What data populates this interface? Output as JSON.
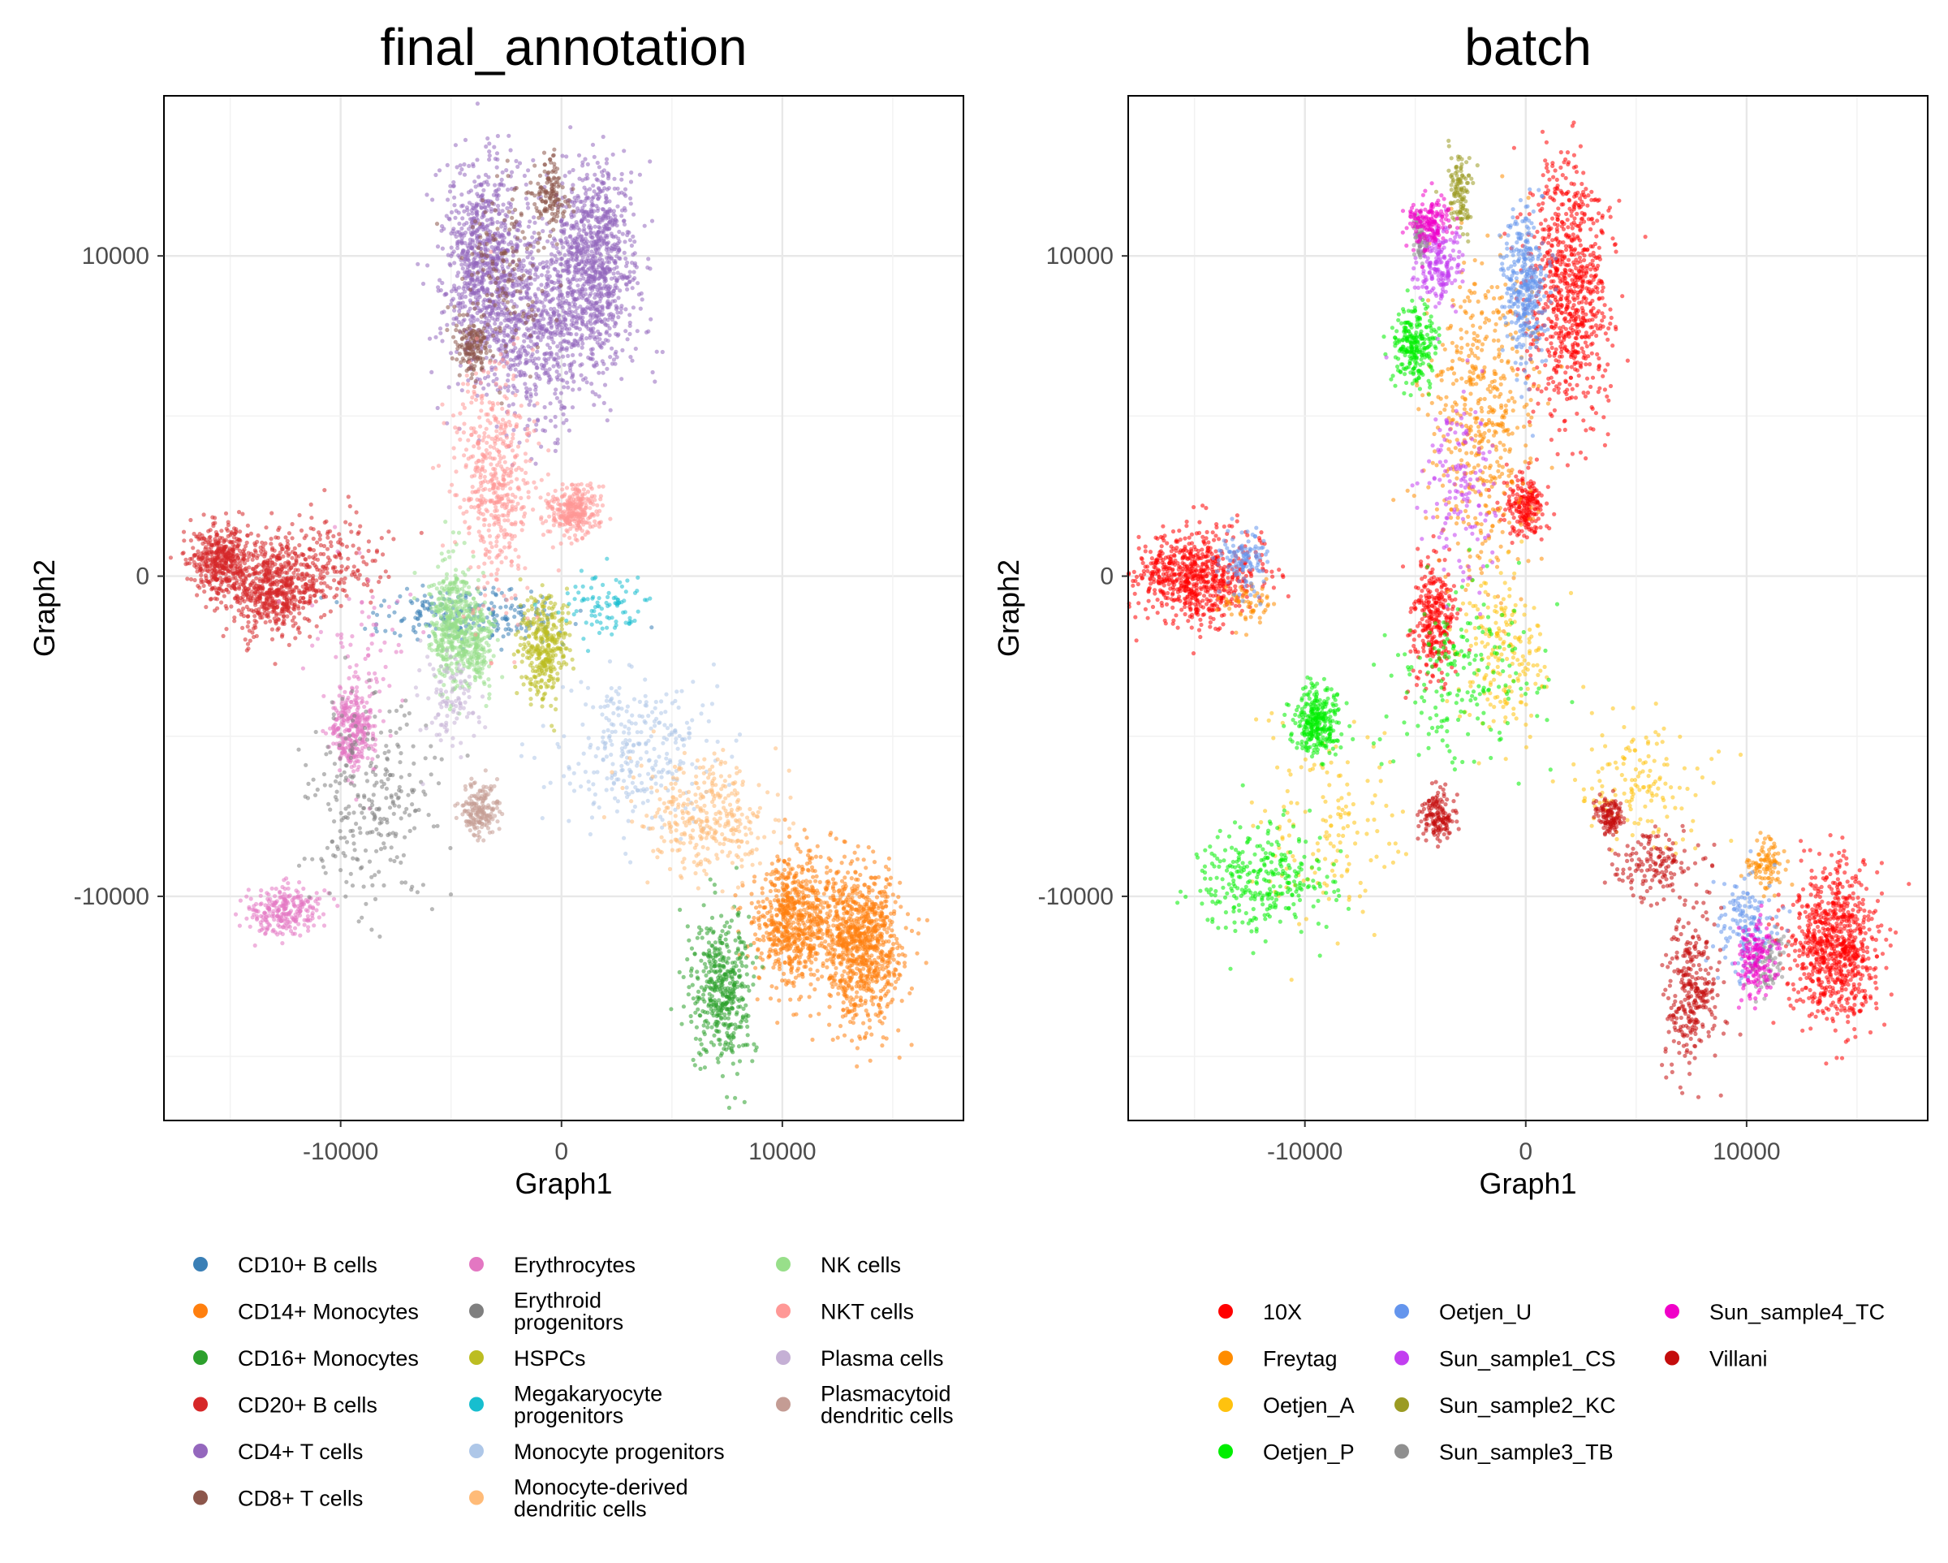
{
  "chart_data": [
    {
      "type": "scatter",
      "title": "final_annotation",
      "xlabel": "Graph1",
      "ylabel": "Graph2",
      "xlim": [
        -18000,
        18200
      ],
      "ylim": [
        -17000,
        15000
      ],
      "xticks": [
        -10000,
        0,
        10000
      ],
      "yticks": [
        -10000,
        0,
        10000
      ],
      "xtick_labels": [
        "-10000",
        "0",
        "10000"
      ],
      "ytick_labels": [
        "-10000",
        "0",
        "10000"
      ],
      "grid": true,
      "legend_position": "bottom",
      "legend_columns": 3,
      "series": [
        {
          "name": "CD10+ B cells",
          "color": "#3a7fb6",
          "clusters": [
            {
              "cx": -4000,
              "cy": -1200,
              "sx": 2200,
              "sy": 400,
              "n": 220
            }
          ]
        },
        {
          "name": "CD14+ Monocytes",
          "color": "#ff7f0e",
          "clusters": [
            {
              "cx": 10500,
              "cy": -10800,
              "sx": 900,
              "sy": 1000,
              "n": 700
            },
            {
              "cx": 13600,
              "cy": -11500,
              "sx": 900,
              "sy": 1200,
              "n": 900
            }
          ]
        },
        {
          "name": "CD16+ Monocytes",
          "color": "#2ca02c",
          "clusters": [
            {
              "cx": 7300,
              "cy": -13000,
              "sx": 700,
              "sy": 1200,
              "n": 450
            }
          ]
        },
        {
          "name": "CD20+ B cells",
          "color": "#d62728",
          "clusters": [
            {
              "cx": -15500,
              "cy": 500,
              "sx": 700,
              "sy": 500,
              "n": 400
            },
            {
              "cx": -13000,
              "cy": -300,
              "sx": 1300,
              "sy": 700,
              "n": 700
            },
            {
              "cx": -10000,
              "cy": 700,
              "sx": 1200,
              "sy": 800,
              "n": 120
            }
          ]
        },
        {
          "name": "CD4+ T cells",
          "color": "#9467bd",
          "clusters": [
            {
              "cx": -3500,
              "cy": 10000,
              "sx": 900,
              "sy": 1500,
              "n": 700
            },
            {
              "cx": 1500,
              "cy": 10000,
              "sx": 900,
              "sy": 1500,
              "n": 800
            },
            {
              "cx": -1000,
              "cy": 8000,
              "sx": 1800,
              "sy": 1500,
              "n": 900
            }
          ]
        },
        {
          "name": "CD8+ T cells",
          "color": "#8c564b",
          "clusters": [
            {
              "cx": -4000,
              "cy": 7200,
              "sx": 400,
              "sy": 500,
              "n": 150
            },
            {
              "cx": -500,
              "cy": 12000,
              "sx": 350,
              "sy": 500,
              "n": 130
            },
            {
              "cx": -2500,
              "cy": 9500,
              "sx": 1000,
              "sy": 1500,
              "n": 150
            }
          ]
        },
        {
          "name": "Erythrocytes",
          "color": "#e377c2",
          "clusters": [
            {
              "cx": -9500,
              "cy": -4800,
              "sx": 500,
              "sy": 600,
              "n": 300
            },
            {
              "cx": -12500,
              "cy": -10500,
              "sx": 800,
              "sy": 400,
              "n": 250
            },
            {
              "cx": -9000,
              "cy": -2500,
              "sx": 1000,
              "sy": 1500,
              "n": 80
            }
          ]
        },
        {
          "name": "Erythroid progenitors",
          "color": "#7f7f7f",
          "clusters": [
            {
              "cx": -8500,
              "cy": -7000,
              "sx": 1400,
              "sy": 1500,
              "n": 280
            }
          ]
        },
        {
          "name": "HSPCs",
          "color": "#bcbd22",
          "clusters": [
            {
              "cx": -800,
              "cy": -2300,
              "sx": 500,
              "sy": 800,
              "n": 350
            }
          ]
        },
        {
          "name": "Megakaryocyte progenitors",
          "color": "#17becf",
          "clusters": [
            {
              "cx": 1800,
              "cy": -900,
              "sx": 1000,
              "sy": 500,
              "n": 90
            }
          ]
        },
        {
          "name": "Monocyte progenitors",
          "color": "#aec7e8",
          "clusters": [
            {
              "cx": 3500,
              "cy": -5500,
              "sx": 1800,
              "sy": 1200,
              "n": 300
            }
          ]
        },
        {
          "name": "Monocyte-derived dendritic cells",
          "color": "#ffbb78",
          "clusters": [
            {
              "cx": 6500,
              "cy": -7500,
              "sx": 1500,
              "sy": 900,
              "n": 350
            }
          ]
        },
        {
          "name": "NK cells",
          "color": "#98df8a",
          "clusters": [
            {
              "cx": -5000,
              "cy": -1500,
              "sx": 500,
              "sy": 900,
              "n": 420
            },
            {
              "cx": -3800,
              "cy": -2000,
              "sx": 400,
              "sy": 700,
              "n": 200
            }
          ]
        },
        {
          "name": "NKT cells",
          "color": "#ff9896",
          "clusters": [
            {
              "cx": -3000,
              "cy": 3000,
              "sx": 900,
              "sy": 1800,
              "n": 500
            },
            {
              "cx": 500,
              "cy": 2000,
              "sx": 600,
              "sy": 400,
              "n": 300
            }
          ]
        },
        {
          "name": "Plasma cells",
          "color": "#c5b0d5",
          "clusters": [
            {
              "cx": -5000,
              "cy": -4000,
              "sx": 700,
              "sy": 800,
              "n": 100
            }
          ]
        },
        {
          "name": "Plasmacytoid dendritic cells",
          "color": "#c49c94",
          "clusters": [
            {
              "cx": -3700,
              "cy": -7300,
              "sx": 400,
              "sy": 400,
              "n": 180
            }
          ]
        }
      ]
    },
    {
      "type": "scatter",
      "title": "batch",
      "xlabel": "Graph1",
      "ylabel": "Graph2",
      "xlim": [
        -18000,
        18200
      ],
      "ylim": [
        -17000,
        15000
      ],
      "xticks": [
        -10000,
        0,
        10000
      ],
      "yticks": [
        -10000,
        0,
        10000
      ],
      "xtick_labels": [
        "-10000",
        "0",
        "10000"
      ],
      "ytick_labels": [
        "-10000",
        "0",
        "10000"
      ],
      "grid": true,
      "legend_position": "bottom",
      "legend_columns": 3,
      "series": [
        {
          "name": "10X",
          "color": "#ff0000",
          "clusters": [
            {
              "cx": -15000,
              "cy": 0,
              "sx": 1400,
              "sy": 700,
              "n": 700
            },
            {
              "cx": 2000,
              "cy": 9000,
              "sx": 900,
              "sy": 2000,
              "n": 800
            },
            {
              "cx": 14000,
              "cy": -11500,
              "sx": 1000,
              "sy": 1200,
              "n": 800
            },
            {
              "cx": -4200,
              "cy": -1500,
              "sx": 500,
              "sy": 900,
              "n": 300
            },
            {
              "cx": 0,
              "cy": 2200,
              "sx": 500,
              "sy": 500,
              "n": 200
            }
          ]
        },
        {
          "name": "Freytag",
          "color": "#ff8c00",
          "clusters": [
            {
              "cx": -2000,
              "cy": 5000,
              "sx": 1200,
              "sy": 2500,
              "n": 500
            },
            {
              "cx": 10800,
              "cy": -9000,
              "sx": 400,
              "sy": 400,
              "n": 100
            },
            {
              "cx": -12500,
              "cy": -800,
              "sx": 600,
              "sy": 400,
              "n": 60
            }
          ]
        },
        {
          "name": "Oetjen_A",
          "color": "#ffc20e",
          "clusters": [
            {
              "cx": -1000,
              "cy": -2500,
              "sx": 1000,
              "sy": 1200,
              "n": 200
            },
            {
              "cx": -9000,
              "cy": -8000,
              "sx": 1500,
              "sy": 1500,
              "n": 150
            },
            {
              "cx": 5000,
              "cy": -6500,
              "sx": 1500,
              "sy": 1000,
              "n": 150
            }
          ]
        },
        {
          "name": "Oetjen_P",
          "color": "#00ee00",
          "clusters": [
            {
              "cx": -9500,
              "cy": -4500,
              "sx": 500,
              "sy": 600,
              "n": 300
            },
            {
              "cx": -12000,
              "cy": -9500,
              "sx": 1500,
              "sy": 800,
              "n": 300
            },
            {
              "cx": -5000,
              "cy": 7200,
              "sx": 500,
              "sy": 600,
              "n": 250
            },
            {
              "cx": -3000,
              "cy": -3000,
              "sx": 2000,
              "sy": 1500,
              "n": 200
            }
          ]
        },
        {
          "name": "Oetjen_U",
          "color": "#6495ed",
          "clusters": [
            {
              "cx": 0,
              "cy": 9000,
              "sx": 500,
              "sy": 1200,
              "n": 350
            },
            {
              "cx": -12800,
              "cy": 500,
              "sx": 500,
              "sy": 500,
              "n": 120
            },
            {
              "cx": 10000,
              "cy": -11000,
              "sx": 800,
              "sy": 800,
              "n": 150
            }
          ]
        },
        {
          "name": "Sun_sample1_CS",
          "color": "#c23ef0",
          "clusters": [
            {
              "cx": -4000,
              "cy": 9800,
              "sx": 500,
              "sy": 600,
              "n": 200
            },
            {
              "cx": -3000,
              "cy": 3000,
              "sx": 900,
              "sy": 1500,
              "n": 150
            }
          ]
        },
        {
          "name": "Sun_sample2_KC",
          "color": "#9b9b23",
          "clusters": [
            {
              "cx": -3000,
              "cy": 12000,
              "sx": 300,
              "sy": 600,
              "n": 120
            }
          ]
        },
        {
          "name": "Sun_sample3_TB",
          "color": "#8f8f8f",
          "clusters": [
            {
              "cx": -4800,
              "cy": 10600,
              "sx": 200,
              "sy": 400,
              "n": 60
            },
            {
              "cx": 11000,
              "cy": -12200,
              "sx": 400,
              "sy": 500,
              "n": 80
            }
          ]
        },
        {
          "name": "Sun_sample4_TC",
          "color": "#f000c8",
          "clusters": [
            {
              "cx": -4300,
              "cy": 11000,
              "sx": 500,
              "sy": 400,
              "n": 160
            },
            {
              "cx": 10400,
              "cy": -12000,
              "sx": 400,
              "sy": 600,
              "n": 150
            }
          ]
        },
        {
          "name": "Villani",
          "color": "#c40c0c",
          "clusters": [
            {
              "cx": -4000,
              "cy": -7500,
              "sx": 400,
              "sy": 400,
              "n": 150
            },
            {
              "cx": 3800,
              "cy": -7500,
              "sx": 300,
              "sy": 300,
              "n": 120
            },
            {
              "cx": 7500,
              "cy": -13000,
              "sx": 600,
              "sy": 1200,
              "n": 300
            },
            {
              "cx": 6000,
              "cy": -9000,
              "sx": 900,
              "sy": 500,
              "n": 150
            }
          ]
        }
      ]
    }
  ]
}
